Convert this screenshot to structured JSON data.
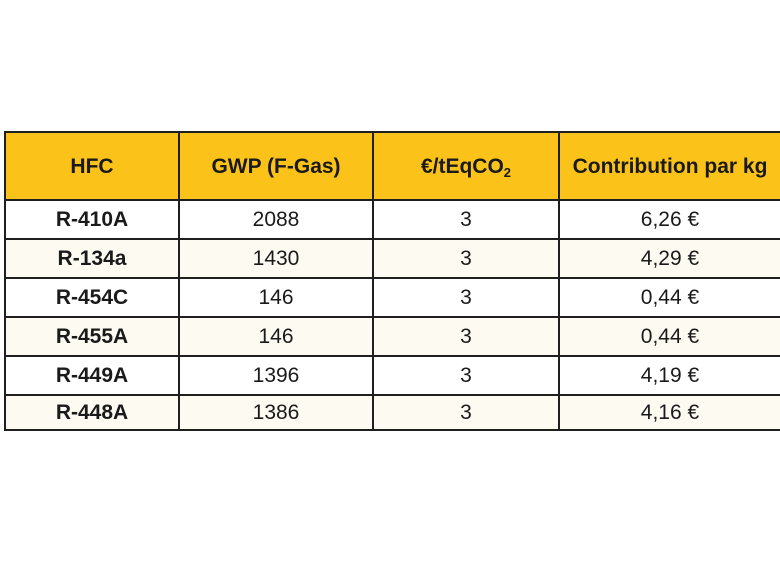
{
  "table": {
    "headers": {
      "hfc": "HFC",
      "gwp": "GWP (F-Gas)",
      "price_main": "€/tEqCO",
      "price_sub": "2",
      "contribution": "Contribution par kg"
    },
    "rows": [
      {
        "hfc": "R-410A",
        "gwp": "2088",
        "price": "3",
        "contribution": "6,26 €"
      },
      {
        "hfc": "R-134a",
        "gwp": "1430",
        "price": "3",
        "contribution": "4,29 €"
      },
      {
        "hfc": "R-454C",
        "gwp": "146",
        "price": "3",
        "contribution": "0,44 €"
      },
      {
        "hfc": "R-455A",
        "gwp": "146",
        "price": "3",
        "contribution": "0,44 €"
      },
      {
        "hfc": "R-449A",
        "gwp": "1396",
        "price": "3",
        "contribution": "4,19 €"
      },
      {
        "hfc": "R-448A",
        "gwp": "1386",
        "price": "3",
        "contribution": "4,16 €"
      }
    ]
  },
  "colors": {
    "header_background": "#fbc319",
    "border": "#1f1f1f",
    "shaded_row": "#fdfaf2"
  }
}
